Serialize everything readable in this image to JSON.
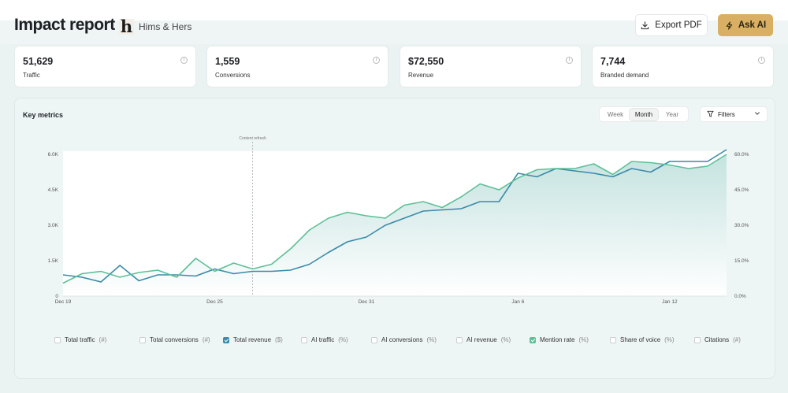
{
  "header": {
    "title": "Impact report",
    "brand_logo": "h",
    "brand_name": "Hims & Hers",
    "export_label": "Export PDF",
    "ask_label": "Ask AI",
    "export_icon": "download-icon",
    "ask_icon": "lightning-icon"
  },
  "kpis": [
    {
      "value": "51,629",
      "label": "Traffic"
    },
    {
      "value": "1,559",
      "label": "Conversions"
    },
    {
      "value": "$72,550",
      "label": "Revenue"
    },
    {
      "value": "7,744",
      "label": "Branded demand"
    }
  ],
  "panel": {
    "title": "Key metrics",
    "segments": [
      {
        "label": "Week",
        "active": false
      },
      {
        "label": "Month",
        "active": true
      },
      {
        "label": "Year",
        "active": false
      }
    ],
    "filters_label": "Filters"
  },
  "colors": {
    "revenue": "#3b8aa8",
    "mention": "#5dbf96",
    "accent": "#d9b063"
  },
  "chart_data": {
    "type": "line",
    "annotation": "Content refresh",
    "annotation_index": 10,
    "x_tick_labels": [
      "Dec 19",
      "Dec 25",
      "Dec 31",
      "Jan 6",
      "Jan 12"
    ],
    "x_tick_index": [
      0,
      8,
      16,
      24,
      32
    ],
    "y_left_ticks": [
      "0",
      "1.5K",
      "3.0K",
      "4.5K",
      "6.0K"
    ],
    "y_right_ticks": [
      "0.0%",
      "15.0%",
      "30.0%",
      "45.0%",
      "60.0%"
    ],
    "y_left_range": [
      0,
      6000
    ],
    "y_right_range": [
      0,
      60
    ],
    "grid": false,
    "series": [
      {
        "name": "Total revenue ($)",
        "axis": "left",
        "color": "#3b8aa8",
        "values": [
          900,
          800,
          600,
          1300,
          650,
          900,
          900,
          850,
          1150,
          950,
          1050,
          1050,
          1100,
          1350,
          1850,
          2300,
          2500,
          3000,
          3300,
          3600,
          3650,
          3700,
          4000,
          4000,
          5200,
          5050,
          5400,
          5300,
          5200,
          5050,
          5400,
          5250,
          5700,
          5700,
          5700,
          6200
        ]
      },
      {
        "name": "Mention rate (%)",
        "axis": "right",
        "color": "#5dbf96",
        "values": [
          5.5,
          9.5,
          10.5,
          8,
          10,
          11,
          8,
          16,
          10.5,
          14,
          11.5,
          13.5,
          20,
          28,
          33,
          35.5,
          34,
          33,
          38.5,
          40,
          37.5,
          42,
          47.5,
          45,
          50,
          53.5,
          54,
          54,
          56,
          51.5,
          57,
          56.5,
          55.5,
          54,
          55,
          60
        ]
      }
    ]
  },
  "legend": [
    {
      "label": "Total traffic",
      "unit": "(#)",
      "checked": false,
      "color": ""
    },
    {
      "label": "Total conversions",
      "unit": "(#)",
      "checked": false,
      "color": ""
    },
    {
      "label": "Total revenue",
      "unit": "($)",
      "checked": true,
      "color": "#3b8aa8"
    },
    {
      "label": "AI traffic",
      "unit": "(%)",
      "checked": false,
      "color": ""
    },
    {
      "label": "AI conversions",
      "unit": "(%)",
      "checked": false,
      "color": ""
    },
    {
      "label": "AI revenue",
      "unit": "(%)",
      "checked": false,
      "color": ""
    },
    {
      "label": "Mention rate",
      "unit": "(%)",
      "checked": true,
      "color": "#5dbf96"
    },
    {
      "label": "Share of voice",
      "unit": "(%)",
      "checked": false,
      "color": ""
    },
    {
      "label": "Citations",
      "unit": "(#)",
      "checked": false,
      "color": ""
    }
  ]
}
